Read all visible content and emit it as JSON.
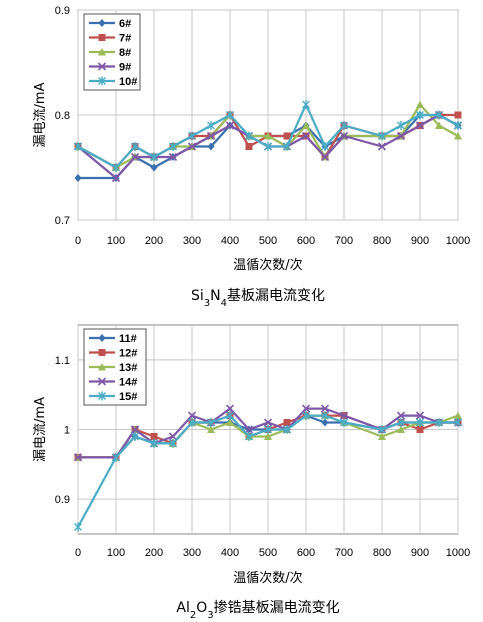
{
  "chart_data": [
    {
      "type": "line",
      "caption_parts": [
        {
          "t": "Si",
          "sub": false
        },
        {
          "t": "3",
          "sub": true
        },
        {
          "t": "N",
          "sub": false
        },
        {
          "t": "4",
          "sub": true
        },
        {
          "t": "基板漏电流变化",
          "sub": false
        }
      ],
      "xlabel": "温循次数/次",
      "ylabel": "漏电流/mA",
      "xlim": [
        0,
        1000
      ],
      "ylim": [
        0.7,
        0.9
      ],
      "x_ticks": [
        0,
        100,
        200,
        300,
        400,
        500,
        600,
        700,
        800,
        900,
        1000
      ],
      "y_ticks": [
        0.7,
        0.8,
        0.9
      ],
      "y_tick_labels": [
        "0.7",
        "0.8",
        "0.9"
      ],
      "grid": true,
      "legend_position": "top-left",
      "x": [
        0,
        100,
        150,
        200,
        250,
        300,
        350,
        400,
        450,
        500,
        550,
        600,
        650,
        700,
        800,
        850,
        900,
        950,
        1000
      ],
      "series": [
        {
          "name": "6#",
          "color": "#3a6fb0",
          "marker": "diamond",
          "values": [
            0.74,
            0.74,
            0.76,
            0.75,
            0.76,
            0.77,
            0.77,
            0.79,
            0.78,
            0.78,
            0.78,
            0.79,
            0.77,
            0.78,
            0.78,
            0.78,
            0.8,
            0.8,
            0.79
          ]
        },
        {
          "name": "7#",
          "color": "#c0504d",
          "marker": "square",
          "values": [
            0.77,
            0.75,
            0.77,
            0.76,
            0.77,
            0.78,
            0.78,
            0.8,
            0.77,
            0.78,
            0.78,
            0.78,
            0.76,
            0.79,
            0.78,
            0.78,
            0.79,
            0.8,
            0.8
          ]
        },
        {
          "name": "8#",
          "color": "#9bbb59",
          "marker": "triangle",
          "values": [
            0.77,
            0.75,
            0.76,
            0.76,
            0.77,
            0.77,
            0.78,
            0.8,
            0.78,
            0.78,
            0.77,
            0.79,
            0.76,
            0.78,
            0.78,
            0.78,
            0.81,
            0.79,
            0.78
          ]
        },
        {
          "name": "9#",
          "color": "#7e57a8",
          "marker": "x",
          "values": [
            0.77,
            0.74,
            0.76,
            0.76,
            0.76,
            0.77,
            0.78,
            0.79,
            0.78,
            0.77,
            0.77,
            0.78,
            0.76,
            0.78,
            0.77,
            0.78,
            0.79,
            0.8,
            0.79
          ]
        },
        {
          "name": "10#",
          "color": "#4bacc6",
          "marker": "star",
          "values": [
            0.77,
            0.75,
            0.77,
            0.76,
            0.77,
            0.78,
            0.79,
            0.8,
            0.78,
            0.77,
            0.77,
            0.81,
            0.77,
            0.79,
            0.78,
            0.79,
            0.8,
            0.8,
            0.79
          ]
        }
      ]
    },
    {
      "type": "line",
      "caption_parts": [
        {
          "t": "Al",
          "sub": false
        },
        {
          "t": "2",
          "sub": true
        },
        {
          "t": "O",
          "sub": false
        },
        {
          "t": "3",
          "sub": true
        },
        {
          "t": "掺锆基板漏电流变化",
          "sub": false
        }
      ],
      "xlabel": "温循次数/次",
      "ylabel": "漏电流/mA",
      "xlim": [
        0,
        1000
      ],
      "ylim": [
        0.85,
        1.15
      ],
      "x_ticks": [
        0,
        100,
        200,
        300,
        400,
        500,
        600,
        700,
        800,
        900,
        1000
      ],
      "y_ticks": [
        0.9,
        1.0,
        1.1
      ],
      "y_tick_labels": [
        "0.9",
        "1",
        "1.1"
      ],
      "grid": true,
      "legend_position": "top-left",
      "x": [
        0,
        100,
        150,
        200,
        250,
        300,
        350,
        400,
        450,
        500,
        550,
        600,
        650,
        700,
        800,
        850,
        900,
        950,
        1000
      ],
      "series": [
        {
          "name": "11#",
          "color": "#3a6fb0",
          "marker": "diamond",
          "values": [
            0.96,
            0.96,
            0.99,
            0.98,
            0.98,
            1.01,
            1.01,
            1.01,
            1.0,
            1.0,
            1.0,
            1.02,
            1.01,
            1.01,
            1.0,
            1.01,
            1.01,
            1.01,
            1.01
          ]
        },
        {
          "name": "12#",
          "color": "#c0504d",
          "marker": "square",
          "values": [
            0.96,
            0.96,
            1.0,
            0.99,
            0.98,
            1.01,
            1.01,
            1.02,
            0.99,
            1.0,
            1.01,
            1.02,
            1.02,
            1.02,
            1.0,
            1.01,
            1.0,
            1.01,
            1.01
          ]
        },
        {
          "name": "13#",
          "color": "#9bbb59",
          "marker": "triangle",
          "values": [
            0.96,
            0.96,
            1.0,
            0.98,
            0.98,
            1.01,
            1.0,
            1.01,
            0.99,
            0.99,
            1.0,
            1.02,
            1.02,
            1.01,
            0.99,
            1.0,
            1.01,
            1.01,
            1.02
          ]
        },
        {
          "name": "14#",
          "color": "#7e57a8",
          "marker": "x",
          "values": [
            0.96,
            0.96,
            1.0,
            0.98,
            0.99,
            1.02,
            1.01,
            1.03,
            1.0,
            1.01,
            1.0,
            1.03,
            1.03,
            1.02,
            1.0,
            1.02,
            1.02,
            1.01,
            1.01
          ]
        },
        {
          "name": "15#",
          "color": "#4bacc6",
          "marker": "star",
          "values": [
            0.86,
            0.96,
            0.99,
            0.98,
            0.98,
            1.01,
            1.01,
            1.02,
            0.99,
            1.0,
            1.0,
            1.02,
            1.02,
            1.01,
            1.0,
            1.01,
            1.01,
            1.01,
            1.01
          ]
        }
      ]
    }
  ]
}
